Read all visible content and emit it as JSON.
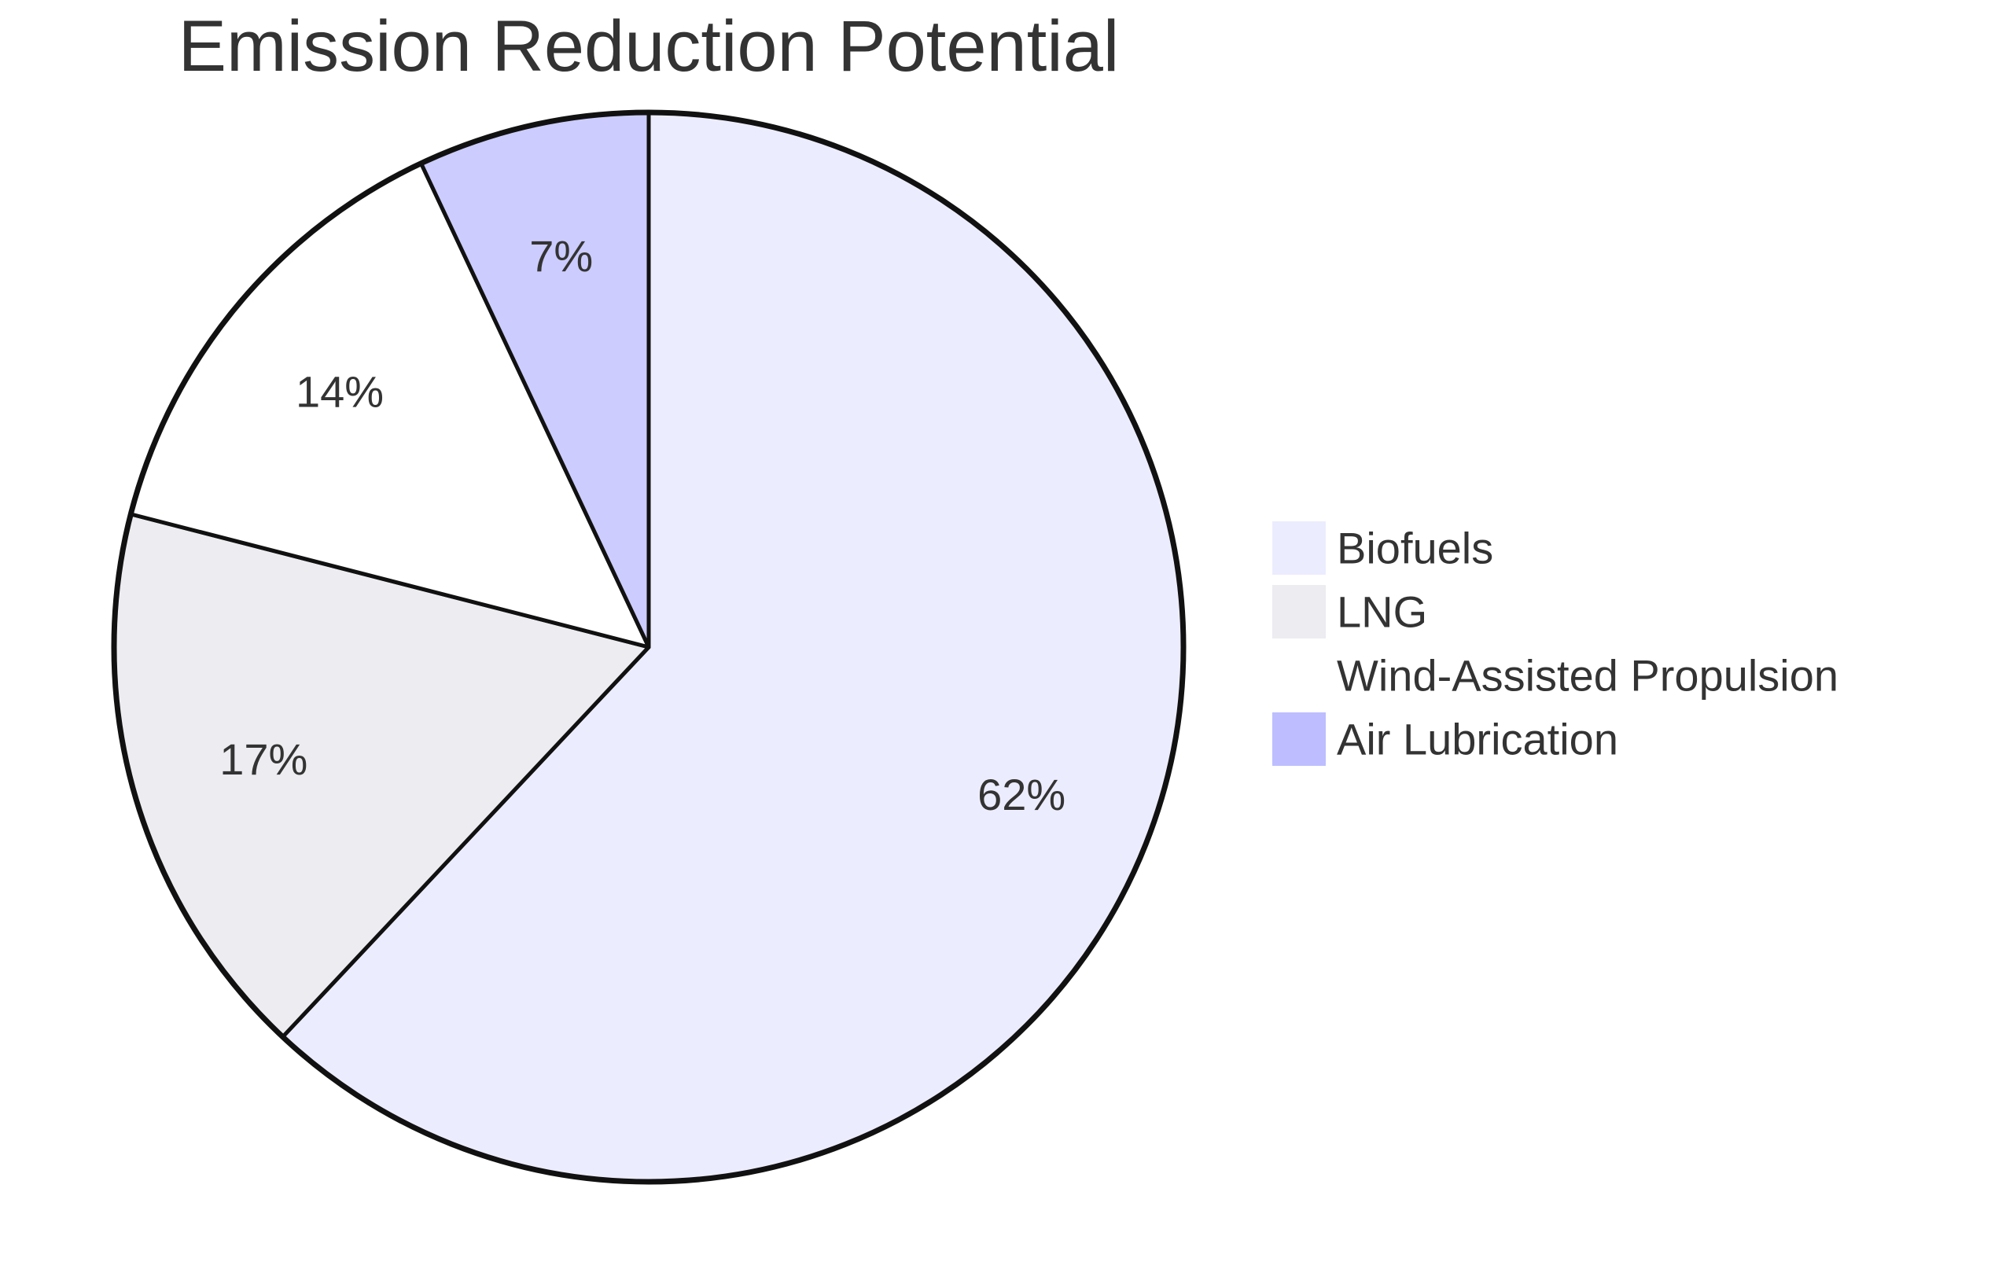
{
  "chart_data": {
    "type": "pie",
    "title": "Emission Reduction Potential",
    "start": "top, clockwise",
    "slices": [
      {
        "name": "Biofuels",
        "percent": 62,
        "label": "62%",
        "color": "#ECECFF"
      },
      {
        "name": "LNG",
        "percent": 17,
        "label": "17%",
        "color": "#ECECF1"
      },
      {
        "name": "Wind-Assisted Propulsion",
        "percent": 14,
        "label": "14%",
        "color": "#FFFFFF"
      },
      {
        "name": "Air Lubrication",
        "percent": 7,
        "label": "7%",
        "color": "#CCCCFF"
      }
    ],
    "legend": {
      "placement": "right",
      "entries": [
        {
          "label": "Biofuels",
          "color": "#ECECFF"
        },
        {
          "label": "LNG",
          "color": "#ECECF1"
        },
        {
          "label": "Wind-Assisted Propulsion",
          "color": "#FFFFFF"
        },
        {
          "label": "Air Lubrication",
          "color": "#BDBDFF"
        }
      ]
    },
    "stroke_color": "#111111",
    "text_color": "#333333"
  }
}
